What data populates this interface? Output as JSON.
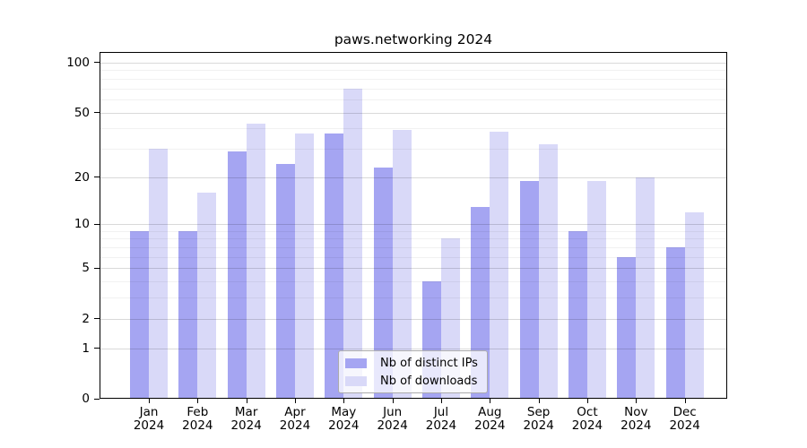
{
  "chart_data": {
    "type": "bar",
    "title": "paws.networking 2024",
    "categories": [
      "Jan",
      "Feb",
      "Mar",
      "Apr",
      "May",
      "Jun",
      "Jul",
      "Aug",
      "Sep",
      "Oct",
      "Nov",
      "Dec"
    ],
    "x_sublabel": "2024",
    "series": [
      {
        "name": "Nb of distinct IPs",
        "color": "#a5a5f2",
        "values": [
          9,
          9,
          29,
          24,
          37,
          23,
          4,
          13,
          19,
          9,
          6,
          7
        ]
      },
      {
        "name": "Nb of downloads",
        "color": "#d9d9f8",
        "values": [
          30,
          16,
          43,
          37,
          70,
          39,
          8,
          38,
          32,
          19,
          20,
          12
        ]
      }
    ],
    "y_axis": {
      "scale": "log1p",
      "ticks": [
        0,
        1,
        2,
        5,
        10,
        20,
        50,
        100
      ],
      "minor_gridlines": [
        3,
        4,
        6,
        7,
        8,
        9,
        30,
        40,
        60,
        70,
        80,
        90
      ],
      "ylim": [
        0,
        130
      ]
    },
    "legend": {
      "position": "bottom-center"
    },
    "grid": true,
    "colors": {
      "frame": "#000000",
      "text": "#000000",
      "legend_border": "#ababab"
    }
  }
}
